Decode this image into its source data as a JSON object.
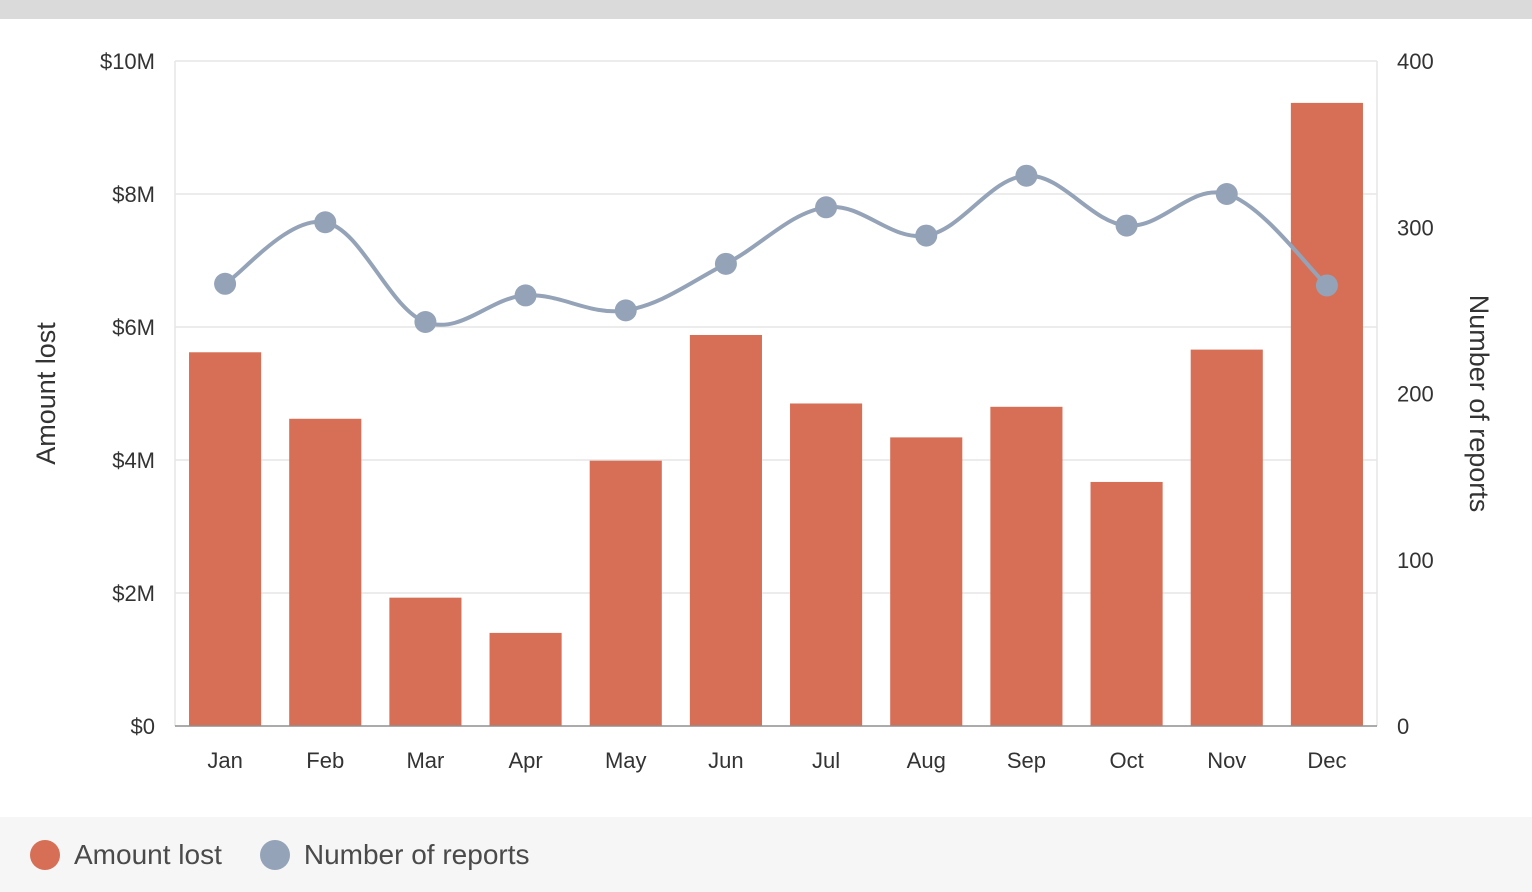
{
  "chart_data": {
    "type": "bar+line",
    "categories": [
      "Jan",
      "Feb",
      "Mar",
      "Apr",
      "May",
      "Jun",
      "Jul",
      "Aug",
      "Sep",
      "Oct",
      "Nov",
      "Dec"
    ],
    "series": [
      {
        "name": "Amount lost",
        "type": "bar",
        "axis": "left",
        "color": "#d76f56",
        "values": [
          5.62,
          4.62,
          1.93,
          1.4,
          3.99,
          5.88,
          4.85,
          4.34,
          4.8,
          3.67,
          5.66,
          9.37
        ]
      },
      {
        "name": "Number of reports",
        "type": "line",
        "axis": "right",
        "color": "#94a3b8",
        "values": [
          266,
          303,
          243,
          259,
          250,
          278,
          312,
          295,
          331,
          301,
          320,
          265
        ]
      }
    ],
    "left_axis": {
      "title": "Amount lost",
      "ylim": [
        0,
        10
      ],
      "ticks": [
        0,
        2,
        4,
        6,
        8,
        10
      ],
      "tick_labels": [
        "$0",
        "$2M",
        "$4M",
        "$6M",
        "$8M",
        "$10M"
      ]
    },
    "right_axis": {
      "title": "Number of reports",
      "ylim": [
        0,
        400
      ],
      "ticks": [
        0,
        100,
        200,
        300,
        400
      ],
      "tick_labels": [
        "0",
        "100",
        "200",
        "300",
        "400"
      ]
    },
    "grid": true,
    "legend": {
      "position": "bottom",
      "items": [
        {
          "label": "Amount lost",
          "color": "#d76f56"
        },
        {
          "label": "Number of reports",
          "color": "#94a3b8"
        }
      ]
    }
  }
}
